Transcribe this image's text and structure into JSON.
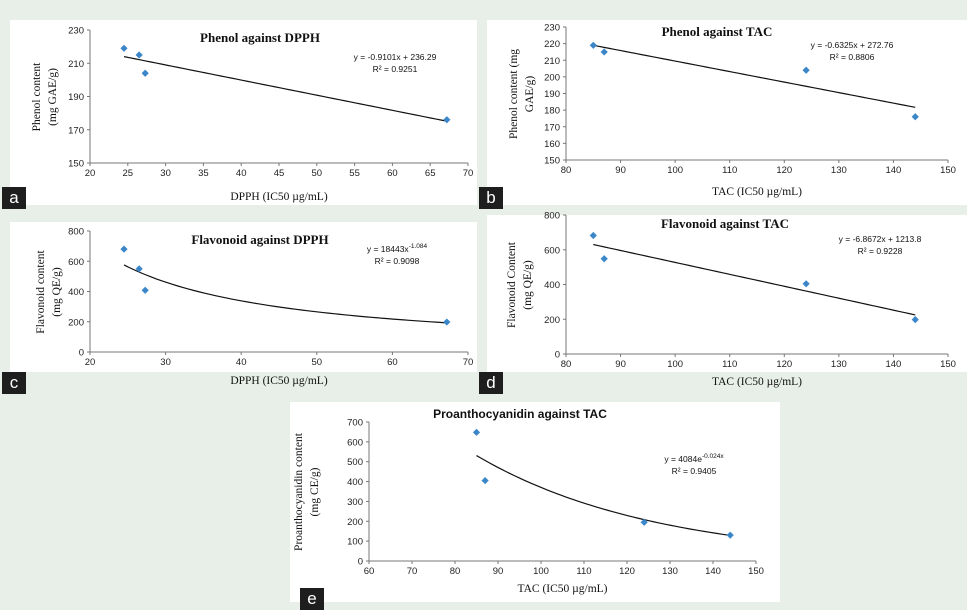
{
  "colors": {
    "background": "#e8efe8",
    "marker": "#3a86c8",
    "trend": "#111111"
  },
  "chart_data": [
    {
      "id": "a",
      "panel_label": "a",
      "type": "scatter",
      "title": "Phenol against DPPH",
      "xlabel": "DPPH (IC50 µg/mL)",
      "ylabel": [
        "Phenol content",
        "(mg GAE/g)"
      ],
      "xlim": [
        20,
        70
      ],
      "ylim": [
        150,
        230
      ],
      "xticks": [
        20,
        25,
        30,
        35,
        40,
        45,
        50,
        55,
        60,
        65,
        70
      ],
      "yticks": [
        150,
        170,
        190,
        210,
        230
      ],
      "points": [
        [
          24.5,
          219
        ],
        [
          26.5,
          215
        ],
        [
          27.3,
          204
        ],
        [
          67.2,
          176
        ]
      ],
      "trendline": {
        "kind": "linear",
        "slope": -0.9101,
        "intercept": 236.29,
        "x_range": [
          24.5,
          67.2
        ]
      },
      "equation": "y = -0.9101x + 236.29",
      "r2": "R² = 0.9251"
    },
    {
      "id": "b",
      "panel_label": "b",
      "type": "scatter",
      "title": "Phenol against TAC",
      "xlabel": "TAC (IC50 µg/mL)",
      "ylabel": [
        "Phenol content (mg",
        "GAE/g)"
      ],
      "xlim": [
        80,
        150
      ],
      "ylim": [
        150,
        230
      ],
      "xticks": [
        80,
        90,
        100,
        110,
        120,
        130,
        140,
        150
      ],
      "yticks": [
        150,
        160,
        170,
        180,
        190,
        200,
        210,
        220,
        230
      ],
      "points": [
        [
          85,
          219
        ],
        [
          87,
          215
        ],
        [
          124,
          204
        ],
        [
          144,
          176
        ]
      ],
      "trendline": {
        "kind": "linear",
        "slope": -0.6325,
        "intercept": 272.76,
        "x_range": [
          85,
          144
        ]
      },
      "equation": "y = -0.6325x + 272.76",
      "r2": "R² = 0.8806"
    },
    {
      "id": "c",
      "panel_label": "c",
      "type": "scatter",
      "title": "Flavonoid against DPPH",
      "xlabel": "DPPH (IC50 µg/mL)",
      "ylabel": [
        "Flavonoid content",
        "(mg QE/g)"
      ],
      "xlim": [
        20,
        70
      ],
      "ylim": [
        0,
        800
      ],
      "xticks": [
        20,
        30,
        40,
        50,
        60,
        70
      ],
      "yticks": [
        0,
        200,
        400,
        600,
        800
      ],
      "points": [
        [
          24.5,
          680
        ],
        [
          26.5,
          550
        ],
        [
          27.3,
          408
        ],
        [
          67.2,
          198
        ]
      ],
      "trendline": {
        "kind": "power",
        "a": 18443,
        "b": -1.084,
        "x_range": [
          24.5,
          67.2
        ]
      },
      "equation": "y = 18443x",
      "equation_exp": "-1.084",
      "r2": "R² = 0.9098"
    },
    {
      "id": "d",
      "panel_label": "d",
      "type": "scatter",
      "title": "Flavonoid against TAC",
      "xlabel": "TAC (IC50 µg/mL)",
      "ylabel": [
        "Flavonoid Content",
        "(mg QE/g)"
      ],
      "xlim": [
        80,
        150
      ],
      "ylim": [
        0,
        800
      ],
      "xticks": [
        80,
        90,
        100,
        110,
        120,
        130,
        140,
        150
      ],
      "yticks": [
        0,
        200,
        400,
        600,
        800
      ],
      "points": [
        [
          85,
          682
        ],
        [
          87,
          548
        ],
        [
          124,
          404
        ],
        [
          144,
          198
        ]
      ],
      "trendline": {
        "kind": "linear",
        "slope": -6.8672,
        "intercept": 1213.8,
        "x_range": [
          85,
          144
        ]
      },
      "equation": "y = -6.8672x + 1213.8",
      "r2": "R² = 0.9228"
    },
    {
      "id": "e",
      "panel_label": "e",
      "type": "scatter",
      "title": "Proanthocyanidin against TAC",
      "xlabel": "TAC (IC50 µg/mL)",
      "ylabel": [
        "Proanthocyanidin content",
        "(mg CE/g)"
      ],
      "xlim": [
        60,
        150
      ],
      "ylim": [
        0,
        700
      ],
      "xticks": [
        60,
        70,
        80,
        90,
        100,
        110,
        120,
        130,
        140,
        150
      ],
      "yticks": [
        0,
        100,
        200,
        300,
        400,
        500,
        600,
        700
      ],
      "points": [
        [
          85,
          648
        ],
        [
          87,
          405
        ],
        [
          124,
          195
        ],
        [
          144,
          130
        ]
      ],
      "trendline": {
        "kind": "exponential",
        "a": 4084,
        "b": -0.024,
        "x_range": [
          85,
          144
        ]
      },
      "equation": "y = 4084e",
      "equation_exp": "-0.024x",
      "r2": "R² = 0.9405"
    }
  ]
}
